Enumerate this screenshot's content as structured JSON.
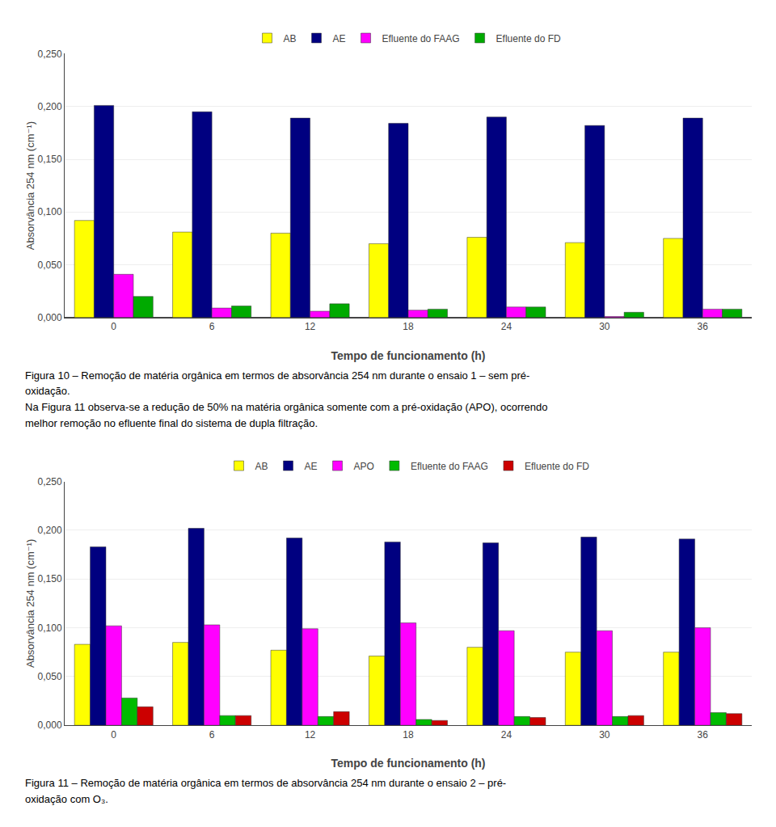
{
  "chart_data": [
    {
      "type": "bar",
      "xlabel": "Tempo de funcionamento (h)",
      "ylabel": "Absorvância 254 nm (cm⁻¹)",
      "categories": [
        0,
        6,
        12,
        18,
        24,
        30,
        36
      ],
      "series": [
        {
          "name": "AB",
          "color": "#FFFF00",
          "values": [
            0.092,
            0.081,
            0.08,
            0.07,
            0.076,
            0.071,
            0.075
          ]
        },
        {
          "name": "AE",
          "color": "#000080",
          "values": [
            0.201,
            0.195,
            0.189,
            0.184,
            0.19,
            0.182,
            0.189
          ]
        },
        {
          "name": "Efluente do FAAG",
          "color": "#FF00FF",
          "values": [
            0.041,
            0.009,
            0.006,
            0.007,
            0.01,
            0.001,
            0.008
          ]
        },
        {
          "name": "Efluente do FD",
          "color": "#00AA00",
          "values": [
            0.02,
            0.011,
            0.013,
            0.008,
            0.01,
            0.005,
            0.008
          ]
        }
      ],
      "ylim": [
        0,
        0.25
      ],
      "yticks": [
        {
          "value": 0,
          "label": "0,000"
        },
        {
          "value": 0.05,
          "label": "0,050"
        },
        {
          "value": 0.1,
          "label": "0,100"
        },
        {
          "value": 0.15,
          "label": "0,150"
        },
        {
          "value": 0.2,
          "label": "0,200"
        },
        {
          "value": 0.25,
          "label": "0,250"
        }
      ],
      "grid": true,
      "legend": "top",
      "annotations": [
        "Figura 10 – Remoção de matéria orgânica em termos de absorvância 254 nm durante o ensaio 1 – sem pré-",
        "oxidação.",
        "Na Figura 11 observa-se a redução de 50% na matéria orgânica somente com a pré-oxidação (APO), ocorrendo",
        "melhor remoção no efluente final do sistema de dupla filtração."
      ]
    },
    {
      "type": "bar",
      "xlabel": "Tempo de funcionamento (h)",
      "ylabel": "Absorvância 254 nm (cm⁻¹)",
      "categories": [
        0,
        6,
        12,
        18,
        24,
        30,
        36
      ],
      "series": [
        {
          "name": "AB",
          "color": "#FFFF00",
          "values": [
            0.083,
            0.085,
            0.077,
            0.071,
            0.08,
            0.075,
            0.075
          ]
        },
        {
          "name": "AE",
          "color": "#000080",
          "values": [
            0.183,
            0.202,
            0.192,
            0.188,
            0.187,
            0.193,
            0.191
          ]
        },
        {
          "name": "APO",
          "color": "#FF00FF",
          "values": [
            0.102,
            0.103,
            0.099,
            0.105,
            0.097,
            0.097,
            0.1
          ]
        },
        {
          "name": "Efluente do FAAG",
          "color": "#00BB00",
          "values": [
            0.028,
            0.01,
            0.009,
            0.006,
            0.009,
            0.009,
            0.013
          ]
        },
        {
          "name": "Efluente do FD",
          "color": "#CC0000",
          "values": [
            0.019,
            0.01,
            0.014,
            0.005,
            0.008,
            0.01,
            0.012
          ]
        }
      ],
      "ylim": [
        0,
        0.25
      ],
      "yticks": [
        {
          "value": 0,
          "label": "0,000"
        },
        {
          "value": 0.05,
          "label": "0,050"
        },
        {
          "value": 0.1,
          "label": "0,100"
        },
        {
          "value": 0.15,
          "label": "0,150"
        },
        {
          "value": 0.2,
          "label": "0,200"
        },
        {
          "value": 0.25,
          "label": "0,250"
        }
      ],
      "grid": true,
      "legend": "top",
      "annotations": [
        "Figura 11 – Remoção de matéria orgânica em termos de absorvância 254 nm durante o ensaio 2 – pré-",
        "oxidação com O₃."
      ]
    }
  ]
}
